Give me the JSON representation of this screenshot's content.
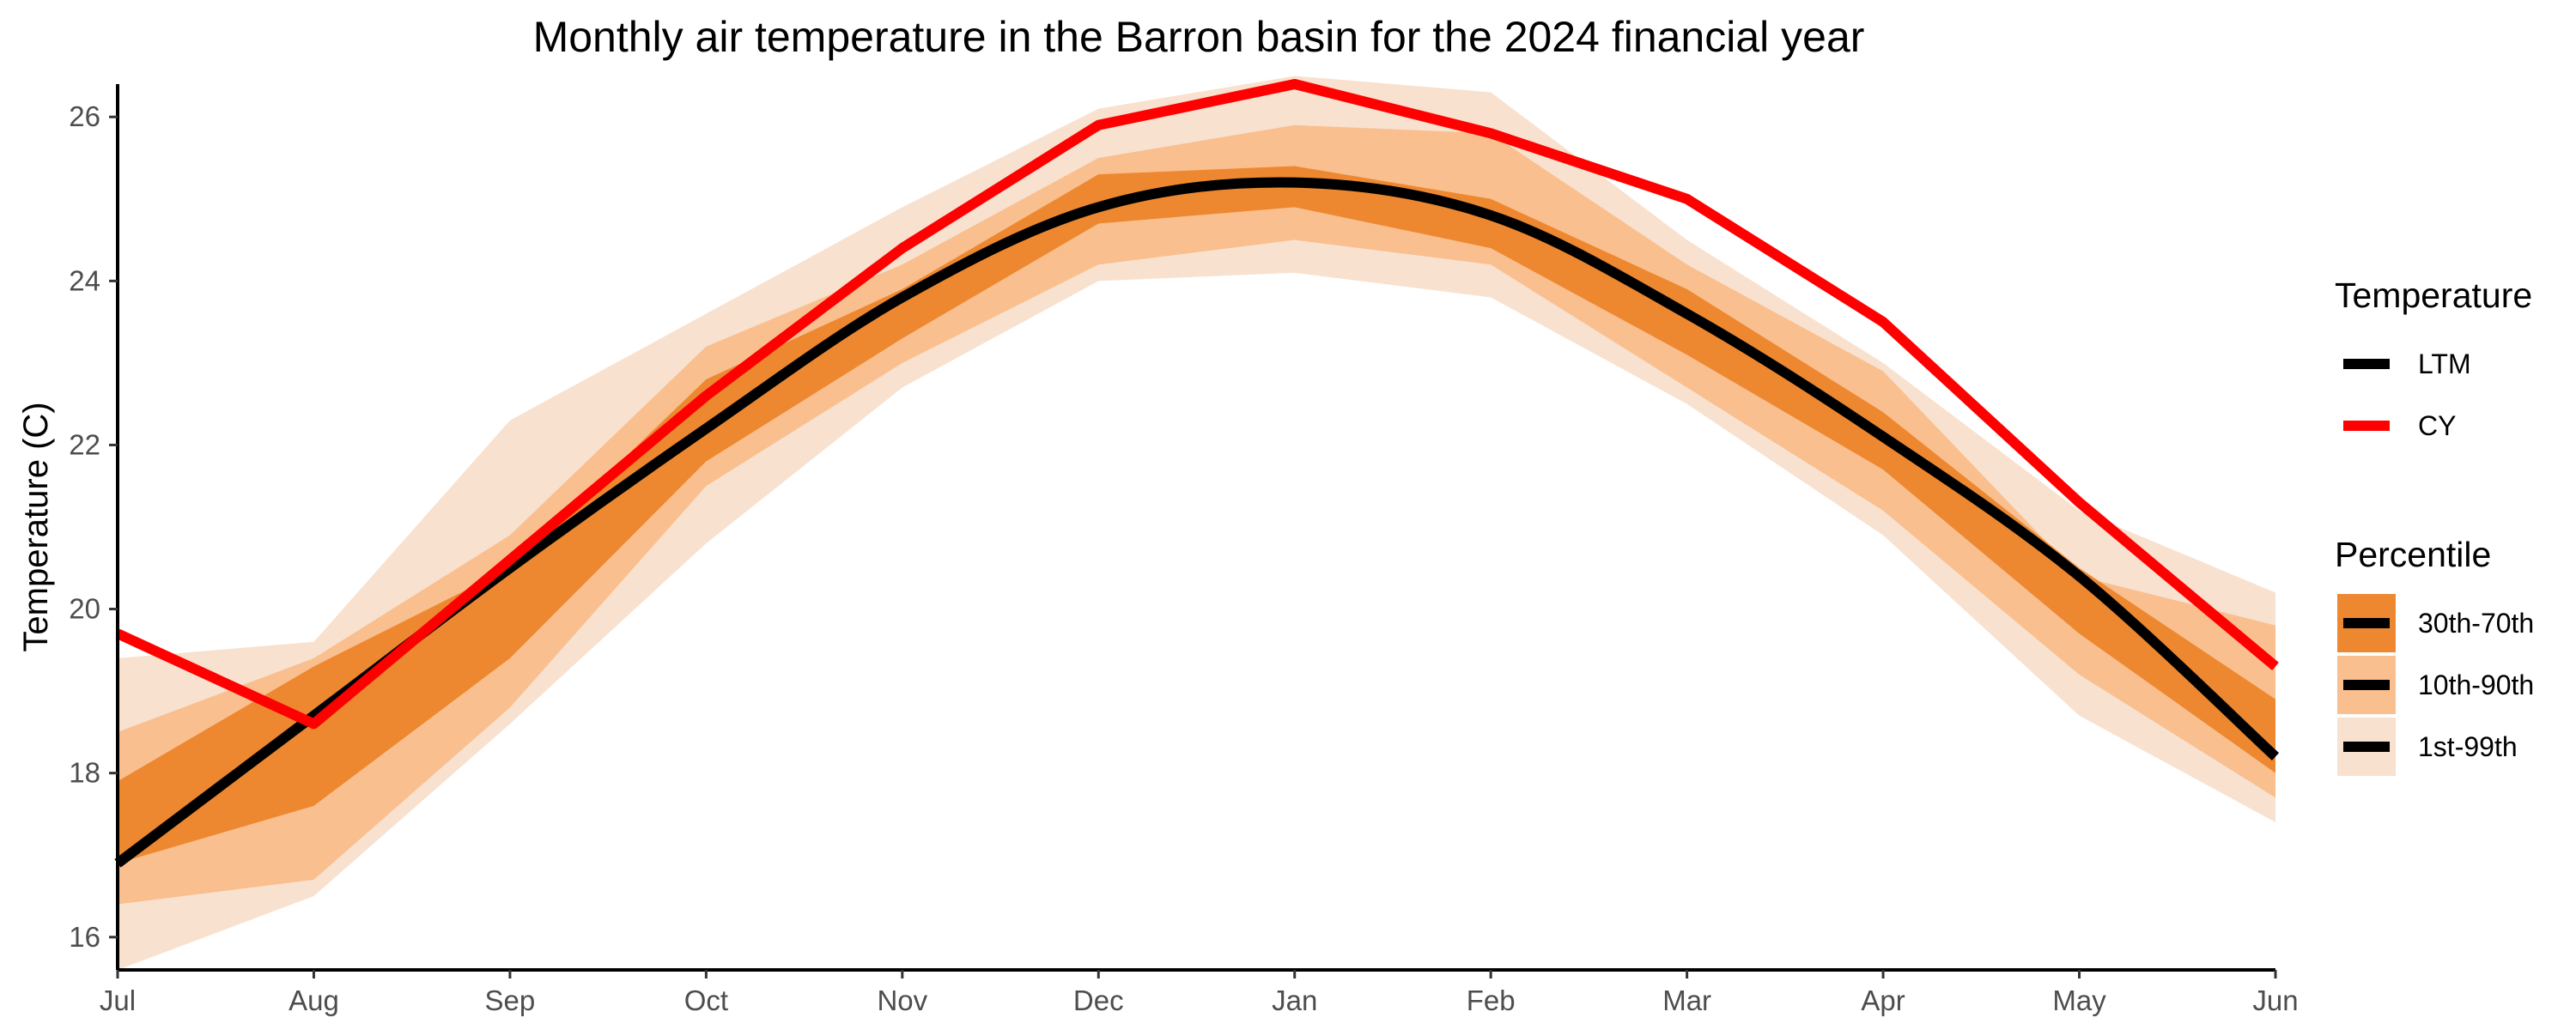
{
  "chart_data": {
    "type": "line",
    "title": "Monthly air temperature in the Barron basin for the 2024 financial year",
    "xlabel": "",
    "ylabel": "Temperature (C)",
    "categories": [
      "Jul",
      "Aug",
      "Sep",
      "Oct",
      "Nov",
      "Dec",
      "Jan",
      "Feb",
      "Mar",
      "Apr",
      "May",
      "Jun"
    ],
    "yticks": [
      16,
      18,
      20,
      22,
      24,
      26
    ],
    "ylim": [
      15.6,
      26.4
    ],
    "grid": false,
    "series": [
      {
        "name": "LTM",
        "color": "#000000",
        "values": [
          16.9,
          18.7,
          20.5,
          22.2,
          23.8,
          24.9,
          25.2,
          24.8,
          23.6,
          22.1,
          20.4,
          18.2
        ]
      },
      {
        "name": "CY",
        "color": "#ff0000",
        "values": [
          19.7,
          18.6,
          20.6,
          22.6,
          24.4,
          25.9,
          26.4,
          25.8,
          25.0,
          23.5,
          21.3,
          19.3
        ]
      }
    ],
    "bands": [
      {
        "name": "1st-99th",
        "color": "#f9e1cf",
        "lower": [
          15.6,
          16.5,
          18.6,
          20.8,
          22.7,
          24.0,
          24.1,
          23.8,
          22.5,
          20.9,
          18.7,
          17.4
        ],
        "upper": [
          19.4,
          19.6,
          22.3,
          23.6,
          24.9,
          26.1,
          26.5,
          26.3,
          24.5,
          23.0,
          21.2,
          20.2
        ]
      },
      {
        "name": "10th-90th",
        "color": "#f9bf8f",
        "lower": [
          16.4,
          16.7,
          18.8,
          21.5,
          23.0,
          24.2,
          24.5,
          24.2,
          22.7,
          21.2,
          19.2,
          17.7
        ],
        "upper": [
          18.5,
          19.4,
          20.9,
          23.2,
          24.2,
          25.5,
          25.9,
          25.8,
          24.2,
          22.9,
          20.4,
          19.8
        ]
      },
      {
        "name": "30th-70th",
        "color": "#ed8830",
        "lower": [
          16.9,
          17.6,
          19.4,
          21.8,
          23.3,
          24.7,
          24.9,
          24.4,
          23.1,
          21.7,
          19.7,
          18.0
        ],
        "upper": [
          17.9,
          19.3,
          20.5,
          22.8,
          23.9,
          25.3,
          25.4,
          25.0,
          23.9,
          22.4,
          20.5,
          18.9
        ]
      }
    ],
    "legend": {
      "placement": "right",
      "temperature_title": "Temperature",
      "temperature_items": [
        {
          "label": "LTM",
          "color": "#000000"
        },
        {
          "label": "CY",
          "color": "#ff0000"
        }
      ],
      "percentile_title": "Percentile",
      "percentile_items": [
        {
          "label": "30th-70th",
          "color": "#ed8830"
        },
        {
          "label": "10th-90th",
          "color": "#f9bf8f"
        },
        {
          "label": "1st-99th",
          "color": "#f9e1cf"
        }
      ]
    }
  }
}
